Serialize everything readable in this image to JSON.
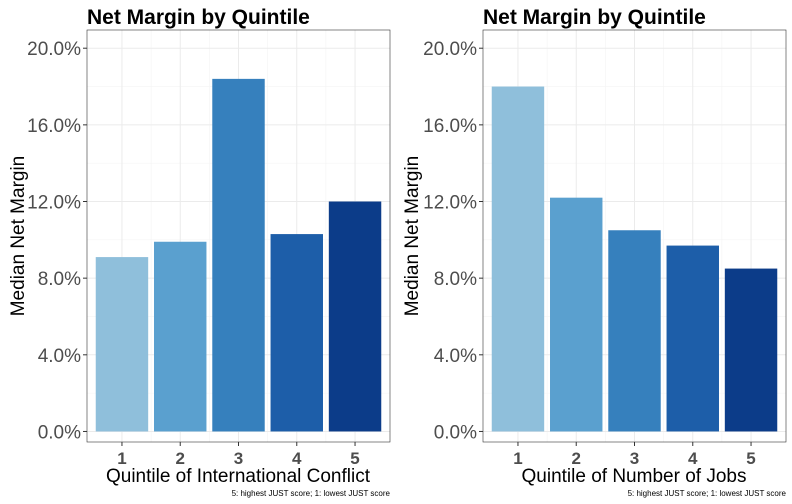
{
  "chart_data": [
    {
      "type": "bar",
      "title": "Net Margin by Quintile",
      "xlabel": "Quintile of International Conflict",
      "ylabel": "Median Net Margin",
      "caption": "5: highest JUST score; 1: lowest JUST score",
      "categories": [
        "1",
        "2",
        "3",
        "4",
        "5"
      ],
      "values": [
        0.091,
        0.099,
        0.184,
        0.103,
        0.12
      ],
      "colors": [
        "#8fbfdb",
        "#5aa0cf",
        "#3680bd",
        "#1d5ea9",
        "#0c3c89"
      ],
      "yticks": [
        0,
        0.04,
        0.08,
        0.12,
        0.16,
        0.2
      ],
      "ytick_labels": [
        "0.0%",
        "4.0%",
        "8.0%",
        "12.0%",
        "16.0%",
        "20.0%"
      ],
      "ylim": [
        -0.0055,
        0.2095
      ],
      "grid": true,
      "legend": "none"
    },
    {
      "type": "bar",
      "title": "Net Margin by Quintile",
      "xlabel": "Quintile of Number of Jobs",
      "ylabel": "Median Net Margin",
      "caption": "5: highest JUST score; 1: lowest JUST score",
      "categories": [
        "1",
        "2",
        "3",
        "4",
        "5"
      ],
      "values": [
        0.18,
        0.122,
        0.105,
        0.097,
        0.085
      ],
      "colors": [
        "#8fbfdb",
        "#5aa0cf",
        "#3680bd",
        "#1d5ea9",
        "#0c3c89"
      ],
      "yticks": [
        0,
        0.04,
        0.08,
        0.12,
        0.16,
        0.2
      ],
      "ytick_labels": [
        "0.0%",
        "4.0%",
        "8.0%",
        "12.0%",
        "16.0%",
        "20.0%"
      ],
      "ylim": [
        -0.0055,
        0.2095
      ],
      "grid": true,
      "legend": "none"
    }
  ]
}
